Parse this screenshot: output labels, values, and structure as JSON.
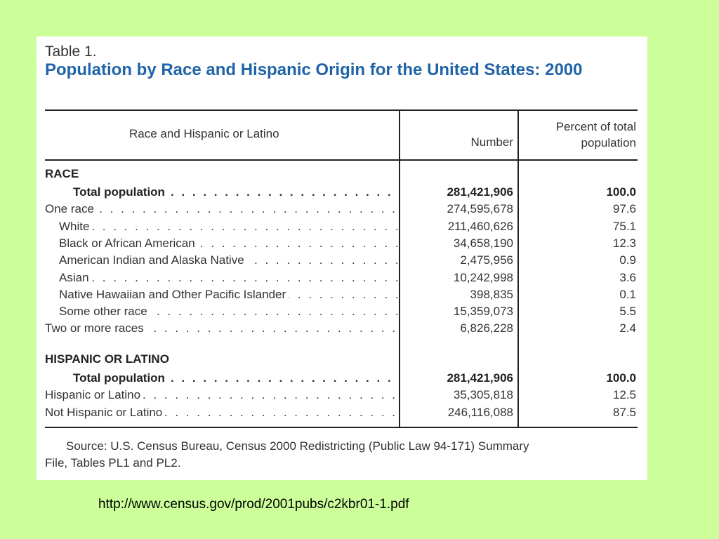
{
  "table": {
    "label": "Table 1.",
    "title": "Population by Race and Hispanic Origin for the United States:   2000",
    "col_label_header": "Race and Hispanic or Latino",
    "col_number_header": "Number",
    "col_percent_header_line1": "Percent of total",
    "col_percent_header_line2": "population",
    "race_section": "RACE",
    "hispanic_section": "HISPANIC OR LATINO",
    "race_rows": [
      {
        "label": "Total population",
        "number": "281,421,906",
        "percent": "100.0"
      },
      {
        "label": "One race",
        "number": "274,595,678",
        "percent": "97.6"
      },
      {
        "label": "White",
        "number": "211,460,626",
        "percent": "75.1"
      },
      {
        "label": "Black or African American",
        "number": "34,658,190",
        "percent": "12.3"
      },
      {
        "label": "American Indian and Alaska Native",
        "number": "2,475,956",
        "percent": "0.9"
      },
      {
        "label": "Asian",
        "number": "10,242,998",
        "percent": "3.6"
      },
      {
        "label": "Native Hawaiian and Other Pacific Islander",
        "number": "398,835",
        "percent": "0.1"
      },
      {
        "label": "Some other race",
        "number": "15,359,073",
        "percent": "5.5"
      },
      {
        "label": "Two or more races",
        "number": "6,826,228",
        "percent": "2.4"
      }
    ],
    "hispanic_rows": [
      {
        "label": "Total population",
        "number": "281,421,906",
        "percent": "100.0"
      },
      {
        "label": "Hispanic or Latino",
        "number": "35,305,818",
        "percent": "12.5"
      },
      {
        "label": "Not Hispanic or Latino",
        "number": "246,116,088",
        "percent": "87.5"
      }
    ],
    "source_line1": "Source: U.S. Census Bureau, Census 2000 Redistricting (Public Law 94-171) Summary",
    "source_line2": "File, Tables PL1 and PL2."
  },
  "footer_url": "http://www.census.gov/prod/2001pubs/c2kbr01-1.pdf"
}
